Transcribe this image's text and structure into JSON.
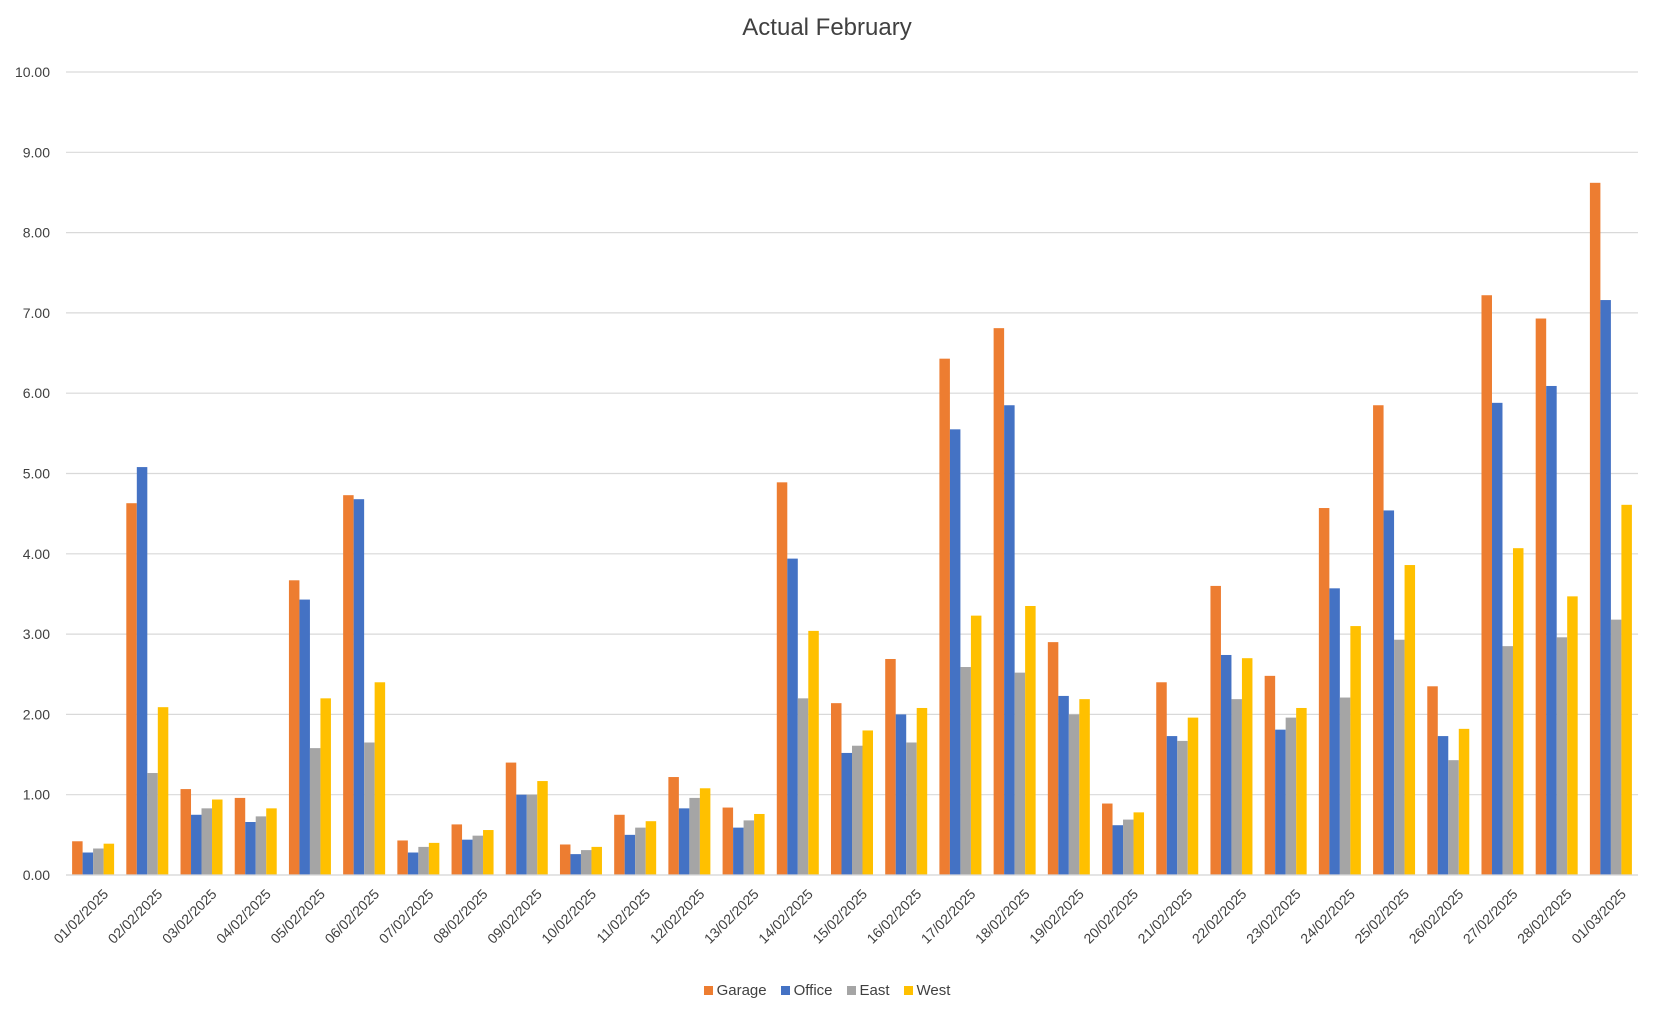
{
  "chart_data": {
    "type": "bar",
    "title": "Actual February",
    "xlabel": "",
    "ylabel": "",
    "ylim": [
      0,
      10
    ],
    "yticks": [
      "0.00",
      "1.00",
      "2.00",
      "3.00",
      "4.00",
      "5.00",
      "6.00",
      "7.00",
      "8.00",
      "9.00",
      "10.00"
    ],
    "grid": true,
    "legend_position": "bottom",
    "categories": [
      "01/02/2025",
      "02/02/2025",
      "03/02/2025",
      "04/02/2025",
      "05/02/2025",
      "06/02/2025",
      "07/02/2025",
      "08/02/2025",
      "09/02/2025",
      "10/02/2025",
      "11/02/2025",
      "12/02/2025",
      "13/02/2025",
      "14/02/2025",
      "15/02/2025",
      "16/02/2025",
      "17/02/2025",
      "18/02/2025",
      "19/02/2025",
      "20/02/2025",
      "21/02/2025",
      "22/02/2025",
      "23/02/2025",
      "24/02/2025",
      "25/02/2025",
      "26/02/2025",
      "27/02/2025",
      "28/02/2025",
      "01/03/2025"
    ],
    "series": [
      {
        "name": "Garage",
        "color": "#ED7D31",
        "values": [
          0.42,
          4.63,
          1.07,
          0.96,
          3.67,
          4.73,
          0.43,
          0.63,
          1.4,
          0.38,
          0.75,
          1.22,
          0.84,
          4.89,
          2.14,
          2.69,
          6.43,
          6.81,
          2.9,
          0.89,
          2.4,
          3.6,
          2.48,
          4.57,
          5.85,
          2.35,
          7.22,
          6.93,
          8.62
        ]
      },
      {
        "name": "Office",
        "color": "#4472C4",
        "values": [
          0.28,
          5.08,
          0.75,
          0.66,
          3.43,
          4.68,
          0.28,
          0.44,
          1.0,
          0.26,
          0.5,
          0.83,
          0.59,
          3.94,
          1.52,
          2.0,
          5.55,
          5.85,
          2.23,
          0.62,
          1.73,
          2.74,
          1.81,
          3.57,
          4.54,
          1.73,
          5.88,
          6.09,
          7.16
        ]
      },
      {
        "name": "East",
        "color": "#A5A5A5",
        "values": [
          0.33,
          1.27,
          0.83,
          0.73,
          1.58,
          1.65,
          0.35,
          0.49,
          1.0,
          0.31,
          0.59,
          0.96,
          0.68,
          2.2,
          1.61,
          1.65,
          2.59,
          2.52,
          2.0,
          0.69,
          1.67,
          2.19,
          1.96,
          2.21,
          2.93,
          1.43,
          2.85,
          2.96,
          3.18
        ]
      },
      {
        "name": "West",
        "color": "#FFC000",
        "values": [
          0.39,
          2.09,
          0.94,
          0.83,
          2.2,
          2.4,
          0.4,
          0.56,
          1.17,
          0.35,
          0.67,
          1.08,
          0.76,
          3.04,
          1.8,
          2.08,
          3.23,
          3.35,
          2.19,
          0.78,
          1.96,
          2.7,
          2.08,
          3.1,
          3.86,
          1.82,
          4.07,
          3.47,
          4.61
        ]
      }
    ]
  }
}
